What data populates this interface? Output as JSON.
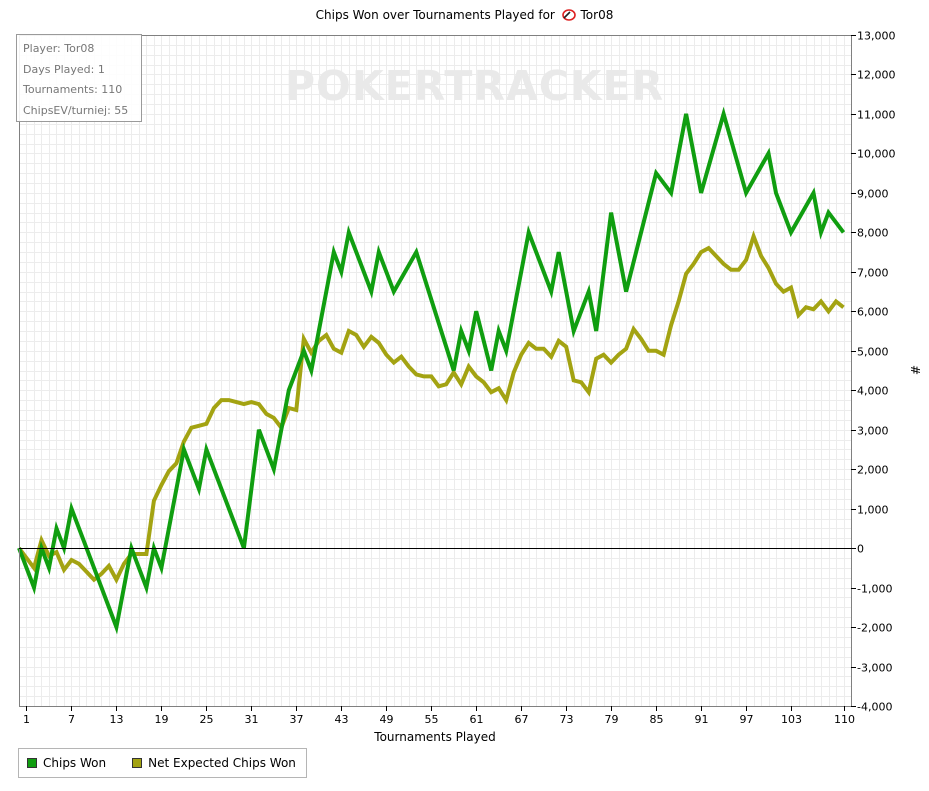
{
  "title": "Chips Won over Tournaments Played for",
  "player_name": "Tor08",
  "watermark": {
    "part1": "POKER",
    "part2": "TRACKER"
  },
  "info_box": {
    "lines": [
      "Player: Tor08",
      "Days Played: 1",
      "Tournaments: 110",
      "ChipsEV/turniej: 55"
    ]
  },
  "legend": [
    {
      "label": "Chips Won",
      "color": "#109e10"
    },
    {
      "label": "Net Expected Chips Won",
      "color": "#a3a312"
    }
  ],
  "chart_data": {
    "type": "line",
    "title": "Chips Won over Tournaments Played for Tor08",
    "xlabel": "Tournaments Played",
    "ylabel": "#",
    "xlim": [
      0,
      111
    ],
    "ylim": [
      -4000,
      13000
    ],
    "x_ticks": [
      1,
      7,
      13,
      19,
      25,
      31,
      37,
      43,
      49,
      55,
      61,
      67,
      73,
      79,
      85,
      91,
      97,
      103,
      110
    ],
    "x_tick_labels": [
      "1",
      "7",
      "13",
      "19",
      "25",
      "31",
      "37",
      "43",
      "49",
      "55",
      "61",
      "67",
      "73",
      "79",
      "85",
      "91",
      "97",
      "103",
      "110"
    ],
    "y_ticks": [
      -4000,
      -3000,
      -2000,
      -1000,
      0,
      1000,
      2000,
      3000,
      4000,
      5000,
      6000,
      7000,
      8000,
      9000,
      10000,
      11000,
      12000,
      13000
    ],
    "y_tick_labels": [
      "-4,000",
      "-3,000",
      "-2,000",
      "-1,000",
      "0",
      "1,000",
      "2,000",
      "3,000",
      "4,000",
      "5,000",
      "6,000",
      "7,000",
      "8,000",
      "9,000",
      "10,000",
      "11,000",
      "12,000",
      "13,000"
    ],
    "grid": true,
    "legend_position": "bottom-left",
    "series": [
      {
        "name": "Chips Won",
        "color": "#109e10",
        "x": [
          0,
          2,
          3,
          4,
          5,
          6,
          7,
          11,
          13,
          15,
          17,
          18,
          19,
          20,
          22,
          24,
          25,
          30,
          32,
          34,
          36,
          38,
          39,
          42,
          43,
          44,
          47,
          48,
          49,
          50,
          53,
          58,
          59,
          60,
          61,
          63,
          64,
          65,
          68,
          71,
          72,
          74,
          76,
          77,
          79,
          81,
          85,
          87,
          88,
          89,
          91,
          94,
          97,
          100,
          101,
          103,
          106,
          107,
          108,
          110
        ],
        "y": [
          0,
          -1000,
          0,
          -500,
          500,
          0,
          1000,
          -1000,
          -2000,
          0,
          -1000,
          0,
          -500,
          500,
          2500,
          1500,
          2500,
          0,
          3000,
          2000,
          4000,
          5000,
          4500,
          7500,
          7000,
          8000,
          6500,
          7500,
          7000,
          6500,
          7500,
          4500,
          5500,
          5000,
          6000,
          4500,
          5500,
          5000,
          8000,
          6500,
          7500,
          5500,
          6500,
          5500,
          8500,
          6500,
          9500,
          9000,
          10000,
          11000,
          9000,
          11000,
          9000,
          10000,
          9000,
          8000,
          9000,
          8000,
          8500,
          8000
        ]
      },
      {
        "name": "Net Expected Chips Won",
        "color": "#a3a312",
        "x": [
          0,
          2,
          3,
          4,
          5,
          6,
          7,
          8,
          9,
          10,
          11,
          12,
          13,
          14,
          15,
          16,
          17,
          18,
          19,
          20,
          21,
          22,
          23,
          24,
          25,
          26,
          27,
          28,
          29,
          30,
          31,
          32,
          33,
          34,
          35,
          36,
          37,
          38,
          39,
          40,
          41,
          42,
          43,
          44,
          45,
          46,
          47,
          48,
          49,
          50,
          51,
          52,
          53,
          54,
          55,
          56,
          57,
          58,
          59,
          60,
          61,
          62,
          63,
          64,
          65,
          66,
          67,
          68,
          69,
          70,
          71,
          72,
          73,
          74,
          75,
          76,
          77,
          78,
          79,
          80,
          81,
          82,
          83,
          84,
          85,
          86,
          87,
          88,
          89,
          90,
          91,
          92,
          93,
          94,
          95,
          96,
          97,
          98,
          99,
          100,
          101,
          102,
          103,
          104,
          105,
          106,
          107,
          108,
          109,
          110
        ],
        "y": [
          0,
          -500,
          200,
          -200,
          -100,
          -550,
          -300,
          -400,
          -600,
          -800,
          -650,
          -450,
          -800,
          -400,
          -150,
          -150,
          -150,
          1200,
          1600,
          1950,
          2150,
          2700,
          3050,
          3100,
          3150,
          3550,
          3750,
          3750,
          3700,
          3650,
          3700,
          3650,
          3400,
          3300,
          3050,
          3550,
          3500,
          5300,
          4950,
          5250,
          5400,
          5050,
          4950,
          5500,
          5400,
          5100,
          5350,
          5200,
          4900,
          4700,
          4850,
          4600,
          4400,
          4350,
          4350,
          4100,
          4150,
          4450,
          4150,
          4600,
          4350,
          4200,
          3950,
          4050,
          3750,
          4450,
          4900,
          5200,
          5050,
          5050,
          4850,
          5250,
          5100,
          4250,
          4200,
          3950,
          4800,
          4900,
          4700,
          4900,
          5050,
          5550,
          5300,
          5000,
          5000,
          4900,
          5650,
          6250,
          6950,
          7200,
          7500,
          7600,
          7400,
          7200,
          7050,
          7050,
          7300,
          7900,
          7400,
          7100,
          6700,
          6500,
          6600,
          5900,
          6100,
          6050,
          6250,
          6000,
          6250,
          6100
        ]
      }
    ]
  }
}
